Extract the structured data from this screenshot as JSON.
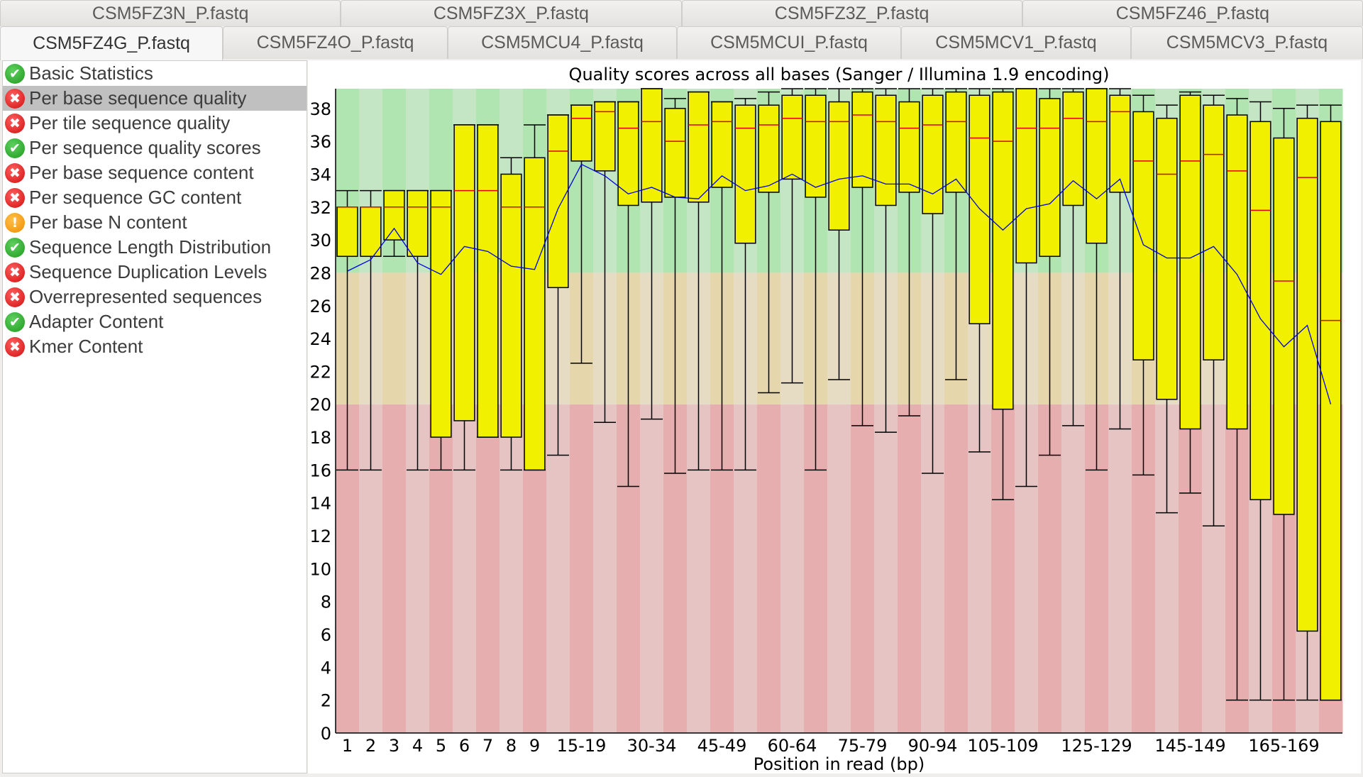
{
  "tabs_row1": [
    "CSM5FZ3N_P.fastq",
    "CSM5FZ3X_P.fastq",
    "CSM5FZ3Z_P.fastq",
    "CSM5FZ46_P.fastq"
  ],
  "tabs_row2": [
    "CSM5FZ4G_P.fastq",
    "CSM5FZ4O_P.fastq",
    "CSM5MCU4_P.fastq",
    "CSM5MCUI_P.fastq",
    "CSM5MCV1_P.fastq",
    "CSM5MCV3_P.fastq"
  ],
  "active_tab": "CSM5FZ4G_P.fastq",
  "modules": [
    {
      "label": "Basic Statistics",
      "status": "pass"
    },
    {
      "label": "Per base sequence quality",
      "status": "fail",
      "selected": true
    },
    {
      "label": "Per tile sequence quality",
      "status": "fail"
    },
    {
      "label": "Per sequence quality scores",
      "status": "pass"
    },
    {
      "label": "Per base sequence content",
      "status": "fail"
    },
    {
      "label": "Per sequence GC content",
      "status": "fail"
    },
    {
      "label": "Per base N content",
      "status": "warn"
    },
    {
      "label": "Sequence Length Distribution",
      "status": "pass"
    },
    {
      "label": "Sequence Duplication Levels",
      "status": "fail"
    },
    {
      "label": "Overrepresented sequences",
      "status": "fail"
    },
    {
      "label": "Adapter Content",
      "status": "pass"
    },
    {
      "label": "Kmer Content",
      "status": "fail"
    }
  ],
  "colors": {
    "box": "#f0f000",
    "median": "#e00000",
    "mean": "#0000dd",
    "good": [
      "#b0e4b0",
      "#c4e6c4"
    ],
    "warn": [
      "#e6d6ac",
      "#e6dcc4"
    ],
    "bad": [
      "#e6aeae",
      "#e6c4c4"
    ]
  },
  "chart_data": {
    "type": "box",
    "title": "Quality scores across all bases (Sanger / Illumina 1.9 encoding)",
    "xlabel": "Position in read (bp)",
    "ylabel": "",
    "ylim": [
      0,
      39.2
    ],
    "yticks": [
      0,
      2,
      4,
      6,
      8,
      10,
      12,
      14,
      16,
      18,
      20,
      22,
      24,
      26,
      28,
      30,
      32,
      34,
      36,
      38
    ],
    "bands": {
      "bad": [
        0,
        20
      ],
      "warn": [
        20,
        28
      ],
      "good": [
        28,
        39.2
      ]
    },
    "categories": [
      "1",
      "2",
      "3",
      "4",
      "5",
      "6",
      "7",
      "8",
      "9",
      "10-14",
      "15-19",
      "20-24",
      "25-29",
      "30-34",
      "35-39",
      "40-44",
      "45-49",
      "50-54",
      "55-59",
      "60-64",
      "65-69",
      "70-74",
      "75-79",
      "80-84",
      "85-89",
      "90-94",
      "95-99",
      "100-104",
      "105-109",
      "110-114",
      "115-119",
      "120-124",
      "125-129",
      "130-134",
      "135-139",
      "140-144",
      "145-149",
      "150-154",
      "155-159",
      "160-164",
      "165-169",
      "170-174",
      "175-179"
    ],
    "shown_x_labels": [
      "1",
      "2",
      "3",
      "4",
      "5",
      "6",
      "7",
      "8",
      "9",
      "15-19",
      "30-34",
      "45-49",
      "60-64",
      "75-79",
      "90-94",
      "105-109",
      "125-129",
      "145-149",
      "165-169"
    ],
    "series": [
      {
        "name": "upper_whisker",
        "values": [
          33,
          33,
          33,
          33,
          33,
          37,
          37,
          35,
          37,
          37.6,
          38.2,
          38.4,
          38.4,
          39.2,
          38.6,
          39,
          38.4,
          38.6,
          39,
          39.2,
          39.2,
          39.2,
          39.2,
          39.2,
          39.2,
          39.2,
          39.2,
          39.2,
          39.2,
          39.2,
          39.2,
          39.2,
          39.2,
          39.2,
          38.8,
          38.2,
          39,
          38.8,
          38.6,
          38.4,
          38,
          38.2,
          38.2
        ]
      },
      {
        "name": "q3",
        "values": [
          32,
          32,
          33,
          33,
          33,
          37,
          37,
          34,
          35,
          37.6,
          38.2,
          38.4,
          38.4,
          39.2,
          38,
          39,
          38.4,
          38.2,
          38.2,
          38.8,
          38.8,
          38.4,
          39,
          38.8,
          38.4,
          38.8,
          39,
          38.8,
          39,
          39.2,
          38.6,
          39,
          39.2,
          38.8,
          37.8,
          37.4,
          38.8,
          38.2,
          37.6,
          37.2,
          36.2,
          37.4,
          37.2
        ]
      },
      {
        "name": "median",
        "values": [
          32,
          32,
          32,
          32,
          32,
          33,
          33,
          32,
          32,
          35.4,
          37.4,
          37.8,
          36.8,
          37.2,
          36,
          37,
          37.2,
          36.8,
          37,
          37.4,
          37.2,
          37.2,
          37.6,
          37.2,
          36.8,
          37,
          37.2,
          36.2,
          36,
          36.8,
          36.8,
          37.4,
          37.2,
          37.8,
          34.8,
          34,
          34.8,
          35.2,
          34.2,
          31.8,
          27.5,
          33.8,
          25.1
        ]
      },
      {
        "name": "q1",
        "values": [
          29,
          29,
          30,
          29,
          18,
          19,
          18,
          18,
          16,
          27.1,
          34.8,
          34.2,
          32.1,
          32.3,
          32.6,
          32.3,
          33.2,
          29.8,
          32.9,
          33.7,
          32.6,
          30.6,
          33.2,
          32.1,
          32.9,
          31.6,
          32.9,
          24.9,
          19.7,
          28.6,
          29,
          32.1,
          29.8,
          32.9,
          22.7,
          20.3,
          18.5,
          22.7,
          18.5,
          14.2,
          13.3,
          6.2,
          2
        ]
      },
      {
        "name": "lower_whisker",
        "values": [
          16,
          16,
          29,
          16,
          16,
          16,
          18,
          16,
          16,
          16.9,
          22.5,
          18.9,
          15,
          19.1,
          15.8,
          16,
          16,
          16,
          20.7,
          21.3,
          16,
          21.5,
          18.7,
          18.3,
          19.3,
          15.8,
          21.5,
          17.1,
          14.2,
          15,
          16.9,
          18.7,
          16,
          18.5,
          15.7,
          13.4,
          14.6,
          12.6,
          2,
          2,
          2,
          2,
          2
        ]
      },
      {
        "name": "mean",
        "values": [
          28.1,
          28.8,
          30.7,
          28.6,
          27.9,
          29.6,
          29.3,
          28.4,
          28.2,
          31.9,
          34.6,
          33.9,
          32.8,
          33.2,
          32.6,
          32.5,
          33.9,
          33,
          33.3,
          34,
          33.2,
          33.7,
          33.9,
          33.4,
          33.4,
          32.8,
          33.7,
          31.9,
          30.6,
          31.9,
          32.2,
          33.6,
          32.5,
          33.7,
          29.7,
          28.9,
          28.9,
          29.6,
          27.9,
          25.2,
          23.5,
          24.8,
          20
        ]
      }
    ]
  }
}
